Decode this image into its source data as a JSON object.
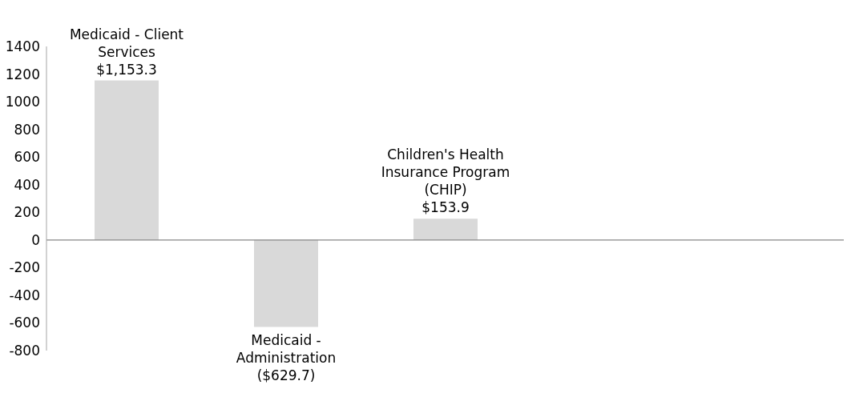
{
  "chart_data": {
    "type": "bar",
    "categories": [
      "Medicaid - Client Services",
      "Medicaid - Administration",
      "Children's Health Insurance Program (CHIP)",
      null,
      null
    ],
    "values": [
      1153.3,
      -629.7,
      153.9,
      null,
      null
    ],
    "value_labels": [
      "$1,153.3",
      "($629.7)",
      "$153.9",
      null,
      null
    ],
    "color": "#d9d9d9",
    "ylim": [
      -800,
      1400
    ],
    "yticks": [
      -800,
      -600,
      -400,
      -200,
      0,
      200,
      400,
      600,
      800,
      1000,
      1200,
      1400
    ]
  }
}
